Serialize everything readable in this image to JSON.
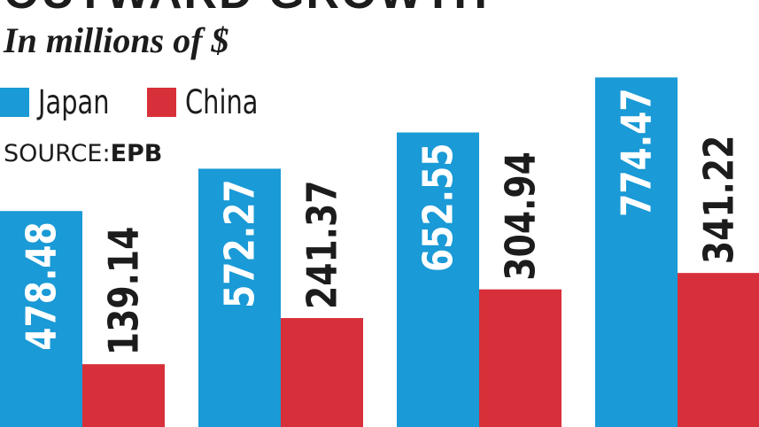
{
  "header": {
    "title_cut": "OUTWARD GROWTH",
    "subtitle": "In millions of $",
    "source_label": "SOURCE:",
    "source_value": "EPB"
  },
  "legend": [
    {
      "name": "Japan",
      "color": "#1a9ad6"
    },
    {
      "name": "China",
      "color": "#d8303a"
    }
  ],
  "chart_data": {
    "type": "bar",
    "title": "",
    "subtitle": "In millions of $",
    "categories": [
      "",
      "",
      "",
      ""
    ],
    "series": [
      {
        "name": "Japan",
        "color": "#1a9ad6",
        "values": [
          478.48,
          572.27,
          652.55,
          774.47
        ],
        "labels": [
          "478.48",
          "572.27",
          "652.55",
          "774.47"
        ]
      },
      {
        "name": "China",
        "color": "#d8303a",
        "values": [
          139.14,
          241.37,
          304.94,
          341.22
        ],
        "labels": [
          "139.14",
          "241.37",
          "304.94",
          "341.22"
        ]
      }
    ],
    "xlabel": "",
    "ylabel": "",
    "grid": false,
    "legend_position": "top-left"
  }
}
